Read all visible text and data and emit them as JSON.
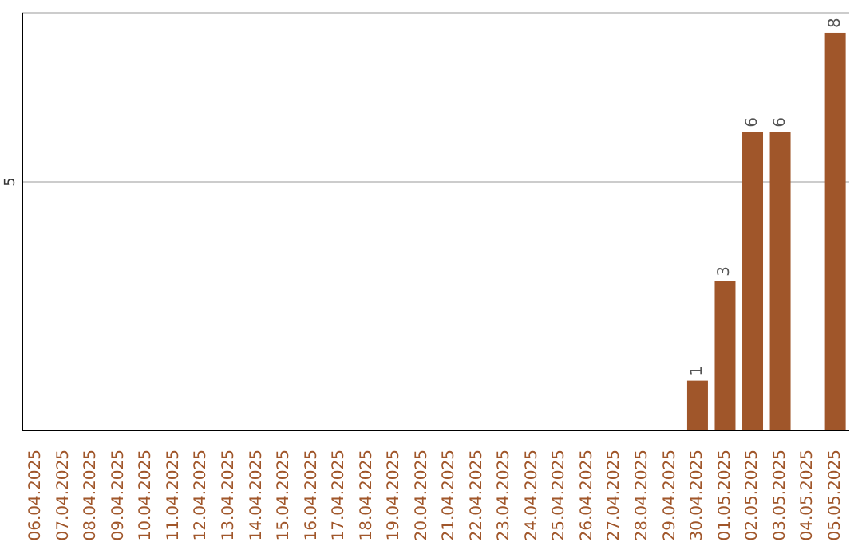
{
  "chart_data": {
    "type": "bar",
    "categories": [
      "06.04.2025",
      "07.04.2025",
      "08.04.2025",
      "09.04.2025",
      "10.04.2025",
      "11.04.2025",
      "12.04.2025",
      "13.04.2025",
      "14.04.2025",
      "15.04.2025",
      "16.04.2025",
      "17.04.2025",
      "18.04.2025",
      "19.04.2025",
      "20.04.2025",
      "21.04.2025",
      "22.04.2025",
      "23.04.2025",
      "24.04.2025",
      "25.04.2025",
      "26.04.2025",
      "27.04.2025",
      "28.04.2025",
      "29.04.2025",
      "30.04.2025",
      "01.05.2025",
      "02.05.2025",
      "03.05.2025",
      "04.05.2025",
      "05.05.2025"
    ],
    "values": [
      null,
      null,
      null,
      null,
      null,
      null,
      null,
      null,
      null,
      null,
      null,
      null,
      null,
      null,
      null,
      null,
      null,
      null,
      null,
      null,
      null,
      null,
      null,
      null,
      1,
      3,
      6,
      6,
      null,
      8
    ],
    "data_labels": true,
    "color": "#a0562a",
    "ylim": [
      0,
      8.4
    ],
    "yticks": [
      5
    ],
    "grid": "y"
  }
}
